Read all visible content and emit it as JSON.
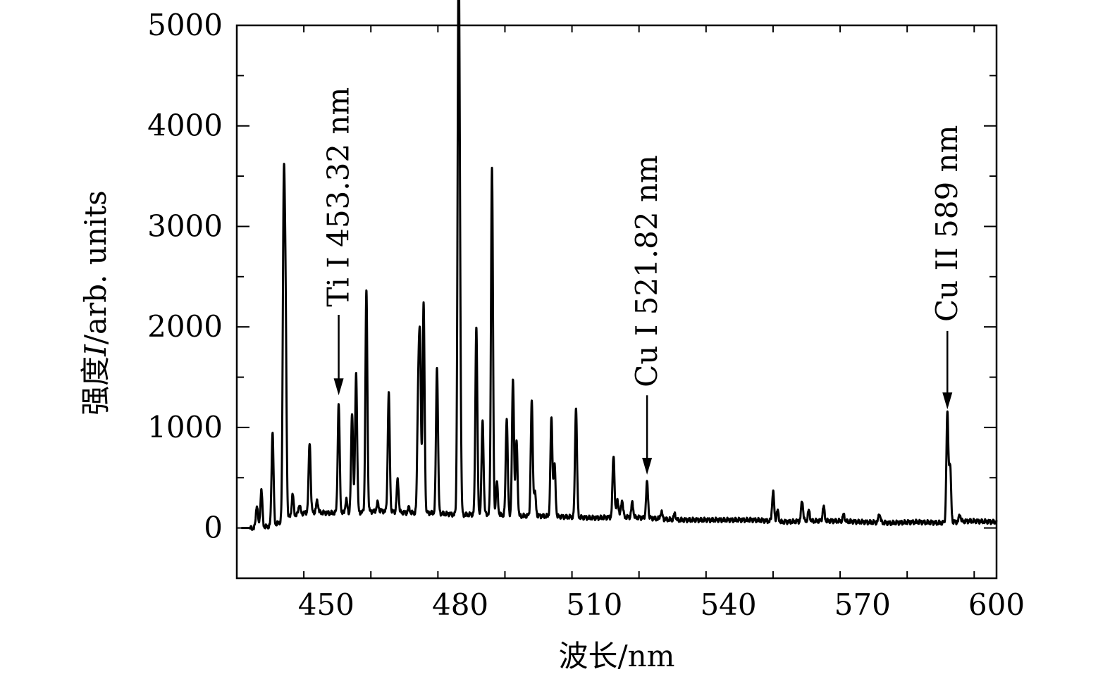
{
  "chart_data": {
    "type": "line",
    "xlabel": "波长/nm",
    "ylabel_prefix": "强度",
    "ylabel_var": "I",
    "ylabel_suffix": "/arb. units",
    "xlim": [
      430,
      600
    ],
    "ylim": [
      -500,
      5000
    ],
    "xticks": [
      450,
      480,
      510,
      540,
      570,
      600
    ],
    "yticks": [
      0,
      1000,
      2000,
      3000,
      4000,
      5000
    ],
    "baseline": [
      [
        430,
        0
      ],
      [
        434,
        0
      ],
      [
        438,
        20
      ],
      [
        442,
        110
      ],
      [
        446,
        160
      ],
      [
        450,
        150
      ],
      [
        456,
        150
      ],
      [
        462,
        170
      ],
      [
        468,
        150
      ],
      [
        474,
        150
      ],
      [
        480,
        130
      ],
      [
        486,
        140
      ],
      [
        492,
        120
      ],
      [
        498,
        120
      ],
      [
        504,
        110
      ],
      [
        510,
        100
      ],
      [
        516,
        110
      ],
      [
        522,
        100
      ],
      [
        528,
        80
      ],
      [
        534,
        80
      ],
      [
        540,
        80
      ],
      [
        546,
        80
      ],
      [
        552,
        60
      ],
      [
        558,
        70
      ],
      [
        564,
        70
      ],
      [
        570,
        60
      ],
      [
        576,
        50
      ],
      [
        582,
        60
      ],
      [
        588,
        50
      ],
      [
        594,
        70
      ],
      [
        600,
        60
      ]
    ],
    "peaks": [
      [
        434.5,
        230
      ],
      [
        435.5,
        380
      ],
      [
        438.0,
        950
      ],
      [
        440.5,
        3140
      ],
      [
        440.9,
        2050
      ],
      [
        442.5,
        330
      ],
      [
        444.0,
        230
      ],
      [
        446.3,
        850
      ],
      [
        448.0,
        270
      ],
      [
        452.8,
        1230
      ],
      [
        454.5,
        280
      ],
      [
        455.8,
        1150
      ],
      [
        456.7,
        1540
      ],
      [
        459.0,
        2350
      ],
      [
        461.5,
        250
      ],
      [
        464.0,
        1340
      ],
      [
        466.0,
        480
      ],
      [
        468.5,
        200
      ],
      [
        470.6,
        1270
      ],
      [
        471.0,
        1710
      ],
      [
        471.8,
        2220
      ],
      [
        474.8,
        1600
      ],
      [
        479.6,
        4850
      ],
      [
        479.9,
        2050
      ],
      [
        483.6,
        2000
      ],
      [
        485.0,
        1060
      ],
      [
        487.1,
        3600
      ],
      [
        488.2,
        450
      ],
      [
        490.4,
        1100
      ],
      [
        491.8,
        1470
      ],
      [
        492.6,
        860
      ],
      [
        496.0,
        1250
      ],
      [
        496.7,
        350
      ],
      [
        500.4,
        1090
      ],
      [
        501.1,
        620
      ],
      [
        505.9,
        1200
      ],
      [
        514.3,
        720
      ],
      [
        515.2,
        280
      ],
      [
        516.2,
        280
      ],
      [
        518.5,
        250
      ],
      [
        521.8,
        450
      ],
      [
        525.0,
        160
      ],
      [
        528.0,
        140
      ],
      [
        550.0,
        360
      ],
      [
        551.0,
        170
      ],
      [
        556.5,
        270
      ],
      [
        558.0,
        170
      ],
      [
        561.3,
        210
      ],
      [
        565.8,
        130
      ],
      [
        573.8,
        140
      ],
      [
        589.0,
        1130
      ],
      [
        589.6,
        620
      ],
      [
        591.8,
        130
      ]
    ],
    "annotations": [
      {
        "label": "Ti I 453.32 nm",
        "x": 452.8,
        "y_arrow_tip": 1320,
        "y_arrow_tail": 2120,
        "y_text_start": 2200
      },
      {
        "label": "Cu I 521.82 nm",
        "x": 521.8,
        "y_arrow_tip": 530,
        "y_arrow_tail": 1320,
        "y_text_start": 1400
      },
      {
        "label": "Cu II 589 nm",
        "x": 589.0,
        "y_arrow_tip": 1180,
        "y_arrow_tail": 1960,
        "y_text_start": 2050
      }
    ]
  }
}
